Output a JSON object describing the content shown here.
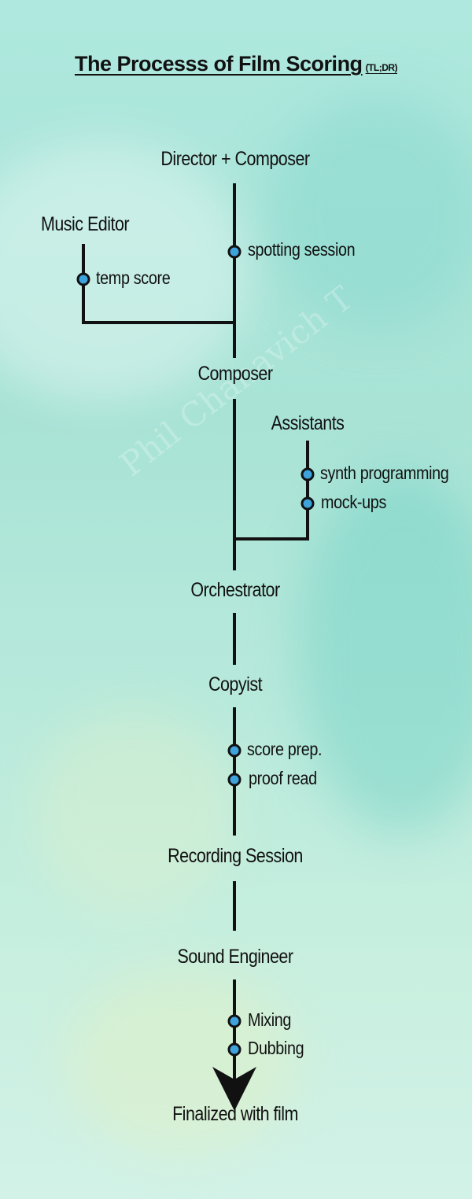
{
  "title": {
    "main": "The Processs of Film Scoring",
    "sub": "(TL;DR)"
  },
  "watermark": "Phil Chanavich T",
  "nodes": {
    "director_composer": "Director + Composer",
    "music_editor": "Music Editor",
    "composer": "Composer",
    "assistants": "Assistants",
    "orchestrator": "Orchestrator",
    "copyist": "Copyist",
    "recording_session": "Recording Session",
    "sound_engineer": "Sound Engineer",
    "finalized": "Finalized with film"
  },
  "steps": {
    "spotting_session": "spotting session",
    "temp_score": "temp score",
    "synth_programming": "synth programming",
    "mock_ups": "mock-ups",
    "score_prep": "score prep.",
    "proof_read": "proof read",
    "mixing": "Mixing",
    "dubbing": "Dubbing"
  },
  "colors": {
    "line": "#111111",
    "dot_fill": "#3ea3dd",
    "dot_stroke": "#111111"
  }
}
